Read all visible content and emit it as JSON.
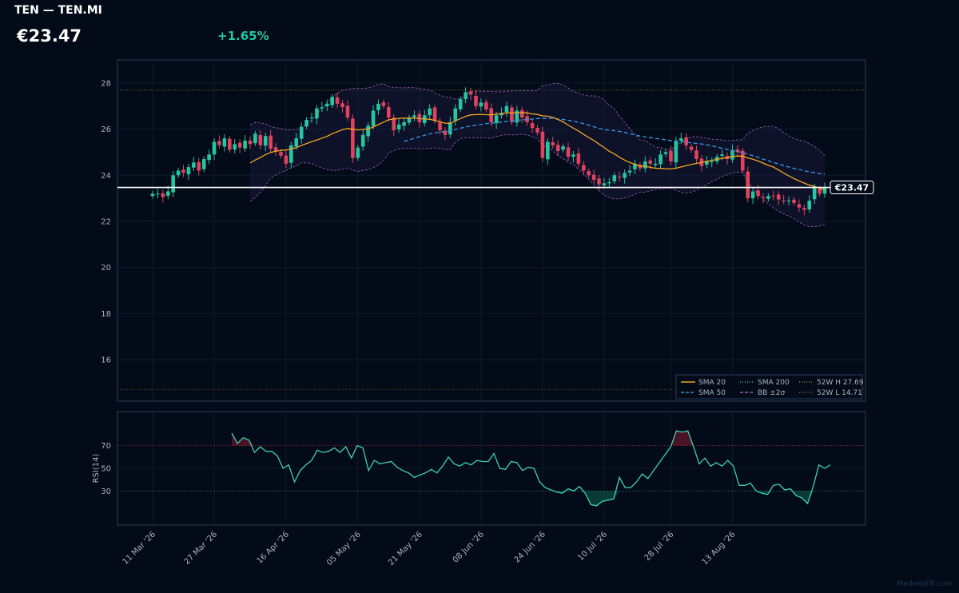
{
  "header": {
    "title": "TEN — TEN.MI",
    "price": "€23.47",
    "change": "+1.65%"
  },
  "watermark": "MarketsFN.com",
  "colors": {
    "background": "#020b17",
    "up": "#26c6a0",
    "down": "#e0435e",
    "sma20": "#f5a623",
    "sma50": "#3b8fd9",
    "sma200": "#26c6a0",
    "bb": "#9b59b6",
    "hi52": "#8a8a30",
    "lo52": "#8a6a30",
    "rsi": "#3fd0b0"
  },
  "chart_data": [
    {
      "type": "candlestick",
      "x_tick_labels": [
        "11 Mar '26",
        "27 Mar '26",
        "16 Apr '26",
        "05 May '26",
        "21 May '26",
        "08 Jun '26",
        "24 Jun '26",
        "10 Jul '26",
        "28 Jul '26",
        "13 Aug '26"
      ],
      "y_ticks": [
        16,
        18,
        20,
        22,
        24,
        26,
        28
      ],
      "ylim": [
        14.2,
        29.0
      ],
      "grid": true,
      "last_price": 23.47,
      "last_price_label": "€23.47",
      "week52_high": 27.69,
      "week52_low": 14.71,
      "close": [
        23.2,
        23.2,
        23.05,
        23.3,
        24.0,
        24.2,
        24.1,
        24.35,
        24.55,
        24.2,
        24.7,
        24.9,
        25.45,
        25.3,
        25.6,
        25.1,
        25.35,
        25.2,
        25.5,
        25.35,
        25.8,
        25.3,
        25.7,
        25.15,
        25.05,
        24.85,
        24.5,
        25.3,
        25.6,
        26.1,
        26.4,
        26.5,
        26.9,
        26.95,
        27.1,
        27.4,
        27.1,
        26.95,
        26.5,
        24.75,
        25.2,
        25.75,
        26.15,
        26.8,
        27.1,
        27.0,
        26.5,
        25.95,
        26.2,
        26.3,
        26.5,
        26.6,
        26.3,
        26.6,
        26.9,
        26.35,
        25.95,
        25.75,
        26.3,
        26.9,
        27.3,
        27.6,
        27.5,
        27.0,
        27.15,
        26.85,
        26.3,
        26.6,
        26.7,
        27.0,
        26.3,
        26.8,
        26.5,
        26.3,
        26.05,
        25.85,
        24.75,
        25.45,
        25.3,
        25.05,
        25.25,
        24.8,
        24.9,
        24.5,
        24.2,
        24.0,
        23.8,
        23.6,
        23.65,
        23.7,
        24.0,
        23.9,
        24.1,
        24.2,
        24.5,
        24.3,
        24.6,
        24.5,
        24.5,
        24.9,
        25.0,
        24.6,
        25.5,
        25.6,
        25.3,
        25.1,
        24.7,
        24.4,
        24.6,
        24.6,
        24.8,
        24.9,
        24.7,
        25.1,
        25.0,
        24.2,
        23.0,
        23.3,
        23.1,
        23.0,
        23.1,
        23.1,
        22.95,
        22.9,
        22.9,
        22.8,
        22.6,
        22.5,
        22.9,
        23.45,
        23.2,
        23.47
      ],
      "sma20_visible": true,
      "sma50_visible": true,
      "bollinger_visible": true,
      "legend": [
        {
          "label": "SMA 20",
          "color": "#f5a623",
          "style": "solid"
        },
        {
          "label": "SMA 50",
          "color": "#3b8fd9",
          "style": "dashed"
        },
        {
          "label": "SMA 200",
          "color": "#26c6a0",
          "style": "dotted"
        },
        {
          "label": "BB ±2σ",
          "color": "#9b59b6",
          "style": "dashed"
        },
        {
          "label": "52W H 27.69",
          "color": "#8a8a30",
          "style": "dotted"
        },
        {
          "label": "52W L 14.71",
          "color": "#8a6a30",
          "style": "dotted"
        }
      ],
      "legend_position": "bottom-right"
    },
    {
      "type": "line",
      "ylabel": "RSI(14)",
      "y_ticks": [
        30,
        50,
        70
      ],
      "ylim": [
        0,
        100
      ],
      "overbought": 70,
      "oversold": 30,
      "values": [
        81,
        72,
        77,
        75,
        64,
        69,
        65,
        65,
        61,
        50,
        53,
        38,
        48,
        53,
        57,
        66,
        64,
        65,
        68,
        64,
        69,
        59,
        70,
        68,
        48,
        57,
        54,
        55,
        56,
        51,
        48,
        46,
        42,
        44,
        46,
        49,
        46,
        52,
        60,
        54,
        52,
        55,
        53,
        57,
        56,
        56,
        63,
        50,
        49,
        56,
        55,
        48,
        51,
        50,
        38,
        33,
        31,
        29,
        28,
        32,
        30,
        34,
        28,
        18,
        17,
        21,
        22,
        23,
        42,
        33,
        33,
        38,
        45,
        41,
        48,
        55,
        62,
        69,
        83,
        82,
        83,
        69,
        54,
        59,
        52,
        55,
        52,
        57,
        52,
        35,
        35,
        37,
        30,
        28,
        27,
        35,
        36,
        31,
        32,
        26,
        24,
        19,
        34,
        53,
        50,
        53
      ]
    }
  ]
}
